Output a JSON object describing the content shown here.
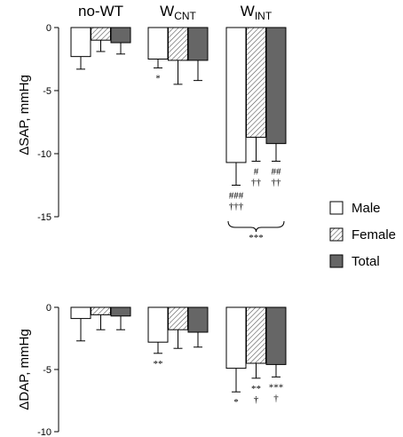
{
  "chart_data": [
    {
      "type": "bar",
      "ylabel": "ΔSAP, mmHg",
      "ylim": [
        -15,
        0
      ],
      "yticks": [
        0,
        -5,
        -10,
        -15
      ],
      "groups": [
        {
          "main": "no-WT",
          "sub": ""
        },
        {
          "main": "W",
          "sub": "CNT"
        },
        {
          "main": "W",
          "sub": "INT"
        }
      ],
      "series": [
        {
          "name": "Male",
          "values": [
            -2.3,
            -2.5,
            -10.7
          ],
          "errors": [
            1.0,
            0.7,
            1.8
          ]
        },
        {
          "name": "Female",
          "values": [
            -1.0,
            -2.6,
            -8.7
          ],
          "errors": [
            0.9,
            1.9,
            1.9
          ]
        },
        {
          "name": "Total",
          "values": [
            -1.2,
            -2.6,
            -9.2
          ],
          "errors": [
            0.9,
            1.6,
            1.4
          ]
        }
      ],
      "annotations": [
        {
          "group": 1,
          "series": 0,
          "lines": [
            "*"
          ]
        },
        {
          "group": 2,
          "series": 0,
          "lines": [
            "###",
            "†††"
          ]
        },
        {
          "group": 2,
          "series": 1,
          "lines": [
            "#",
            "††"
          ]
        },
        {
          "group": 2,
          "series": 2,
          "lines": [
            "##",
            "††"
          ]
        }
      ],
      "bracket_label": "***"
    },
    {
      "type": "bar",
      "ylabel": "ΔDAP, mmHg",
      "ylim": [
        -10,
        0
      ],
      "yticks": [
        0,
        -5,
        -10
      ],
      "series": [
        {
          "name": "Male",
          "values": [
            -0.9,
            -2.8,
            -4.9
          ],
          "errors": [
            1.8,
            0.9,
            1.9
          ]
        },
        {
          "name": "Female",
          "values": [
            -0.6,
            -1.8,
            -4.5
          ],
          "errors": [
            1.2,
            1.5,
            1.2
          ]
        },
        {
          "name": "Total",
          "values": [
            -0.7,
            -2.0,
            -4.6
          ],
          "errors": [
            1.1,
            1.2,
            1.0
          ]
        }
      ],
      "annotations": [
        {
          "group": 1,
          "series": 0,
          "lines": [
            "**"
          ]
        },
        {
          "group": 2,
          "series": 0,
          "lines": [
            "*"
          ]
        },
        {
          "group": 2,
          "series": 1,
          "lines": [
            "**",
            "†"
          ]
        },
        {
          "group": 2,
          "series": 2,
          "lines": [
            "***",
            "†"
          ]
        }
      ]
    }
  ],
  "legend": {
    "position": "right",
    "items": [
      {
        "label": "Male",
        "fill": "white"
      },
      {
        "label": "Female",
        "fill": "hatched"
      },
      {
        "label": "Total",
        "fill": "#666666"
      }
    ]
  },
  "colors": {
    "total_fill": "#666666",
    "axis": "#000000"
  }
}
